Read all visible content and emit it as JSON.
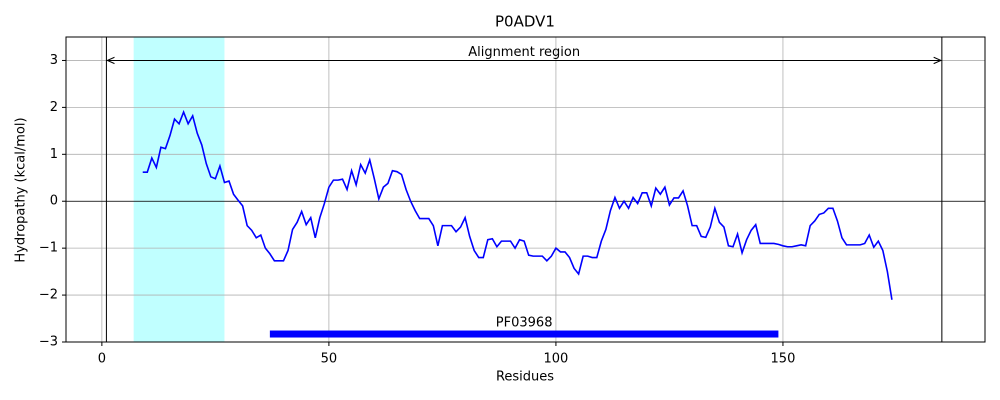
{
  "chart_data": {
    "type": "line",
    "title": "P0ADV1",
    "x_label": "Residues",
    "y_label": "Hydropathy (kcal/mol)",
    "xlim": [
      -7.9,
      194.5
    ],
    "ylim": [
      -3,
      3.5
    ],
    "xticks": [
      0,
      50,
      100,
      150
    ],
    "yticks": [
      {
        "value": -3,
        "label": "−3"
      },
      {
        "value": -2,
        "label": "−2"
      },
      {
        "value": -1,
        "label": "−1"
      },
      0,
      1,
      2,
      3
    ],
    "grid": true,
    "hline": 0,
    "vlines": [
      1,
      185
    ],
    "spans": [
      {
        "start": 7,
        "end": 27,
        "color": "#c0ffff"
      }
    ],
    "arrow": {
      "start": 1,
      "end": 185,
      "y": 3,
      "label": "Alignment region"
    },
    "domains": [
      {
        "name": "PF03968",
        "start": 37,
        "end": 149,
        "y": -2.83,
        "color": "#0000ff"
      }
    ],
    "x": [
      9,
      10,
      11,
      12,
      13,
      14,
      15,
      16,
      17,
      18,
      19,
      20,
      21,
      22,
      23,
      24,
      25,
      26,
      27,
      28,
      29,
      30,
      31,
      32,
      33,
      34,
      35,
      36,
      37,
      38,
      39,
      40,
      41,
      42,
      43,
      44,
      45,
      46,
      47,
      48,
      49,
      50,
      51,
      52,
      53,
      54,
      55,
      56,
      57,
      58,
      59,
      60,
      61,
      62,
      63,
      64,
      65,
      66,
      67,
      68,
      69,
      70,
      71,
      72,
      73,
      74,
      75,
      76,
      77,
      78,
      79,
      80,
      81,
      82,
      83,
      84,
      85,
      86,
      87,
      88,
      89,
      90,
      91,
      92,
      93,
      94,
      95,
      96,
      97,
      98,
      99,
      100,
      101,
      102,
      103,
      104,
      105,
      106,
      107,
      108,
      109,
      110,
      111,
      112,
      113,
      114,
      115,
      116,
      117,
      118,
      119,
      120,
      121,
      122,
      123,
      124,
      125,
      126,
      127,
      128,
      129,
      130,
      131,
      132,
      133,
      134,
      135,
      136,
      137,
      138,
      139,
      140,
      141,
      142,
      143,
      144,
      145,
      146,
      147,
      148,
      149,
      150,
      151,
      152,
      153,
      154,
      155,
      156,
      157,
      158,
      159,
      160,
      161,
      162,
      163,
      164,
      165,
      166,
      167,
      168,
      169,
      170,
      171,
      172,
      173,
      174
    ],
    "series": [
      {
        "name": "Hydropathy",
        "color": "#0000ff",
        "values": [
          0.62,
          0.62,
          0.92,
          0.72,
          1.15,
          1.12,
          1.4,
          1.75,
          1.65,
          1.9,
          1.65,
          1.82,
          1.45,
          1.2,
          0.8,
          0.52,
          0.48,
          0.75,
          0.4,
          0.43,
          0.15,
          0.02,
          -0.1,
          -0.52,
          -0.62,
          -0.78,
          -0.72,
          -1.0,
          -1.12,
          -1.27,
          -1.27,
          -1.27,
          -1.05,
          -0.6,
          -0.45,
          -0.22,
          -0.5,
          -0.35,
          -0.78,
          -0.35,
          -0.05,
          0.3,
          0.45,
          0.45,
          0.47,
          0.25,
          0.65,
          0.35,
          0.78,
          0.6,
          0.88,
          0.48,
          0.05,
          0.3,
          0.38,
          0.65,
          0.63,
          0.57,
          0.25,
          0.0,
          -0.2,
          -0.37,
          -0.37,
          -0.37,
          -0.52,
          -0.95,
          -0.52,
          -0.52,
          -0.52,
          -0.65,
          -0.55,
          -0.35,
          -0.75,
          -1.05,
          -1.2,
          -1.2,
          -0.82,
          -0.8,
          -0.97,
          -0.85,
          -0.85,
          -0.85,
          -1.0,
          -0.82,
          -0.85,
          -1.15,
          -1.17,
          -1.17,
          -1.17,
          -1.27,
          -1.17,
          -1.0,
          -1.08,
          -1.08,
          -1.2,
          -1.43,
          -1.55,
          -1.17,
          -1.17,
          -1.2,
          -1.2,
          -0.85,
          -0.6,
          -0.2,
          0.08,
          -0.15,
          0.0,
          -0.15,
          0.08,
          -0.05,
          0.18,
          0.18,
          -0.1,
          0.28,
          0.15,
          0.3,
          -0.08,
          0.07,
          0.07,
          0.22,
          -0.1,
          -0.52,
          -0.52,
          -0.75,
          -0.77,
          -0.55,
          -0.15,
          -0.45,
          -0.55,
          -0.95,
          -0.97,
          -0.7,
          -1.1,
          -0.82,
          -0.62,
          -0.5,
          -0.9,
          -0.9,
          -0.9,
          -0.9,
          -0.92,
          -0.95,
          -0.97,
          -0.97,
          -0.95,
          -0.93,
          -0.95,
          -0.52,
          -0.42,
          -0.28,
          -0.25,
          -0.15,
          -0.15,
          -0.42,
          -0.78,
          -0.93,
          -0.93,
          -0.93,
          -0.93,
          -0.9,
          -0.72,
          -0.98,
          -0.85,
          -1.05,
          -1.5,
          -2.1
        ]
      }
    ]
  }
}
